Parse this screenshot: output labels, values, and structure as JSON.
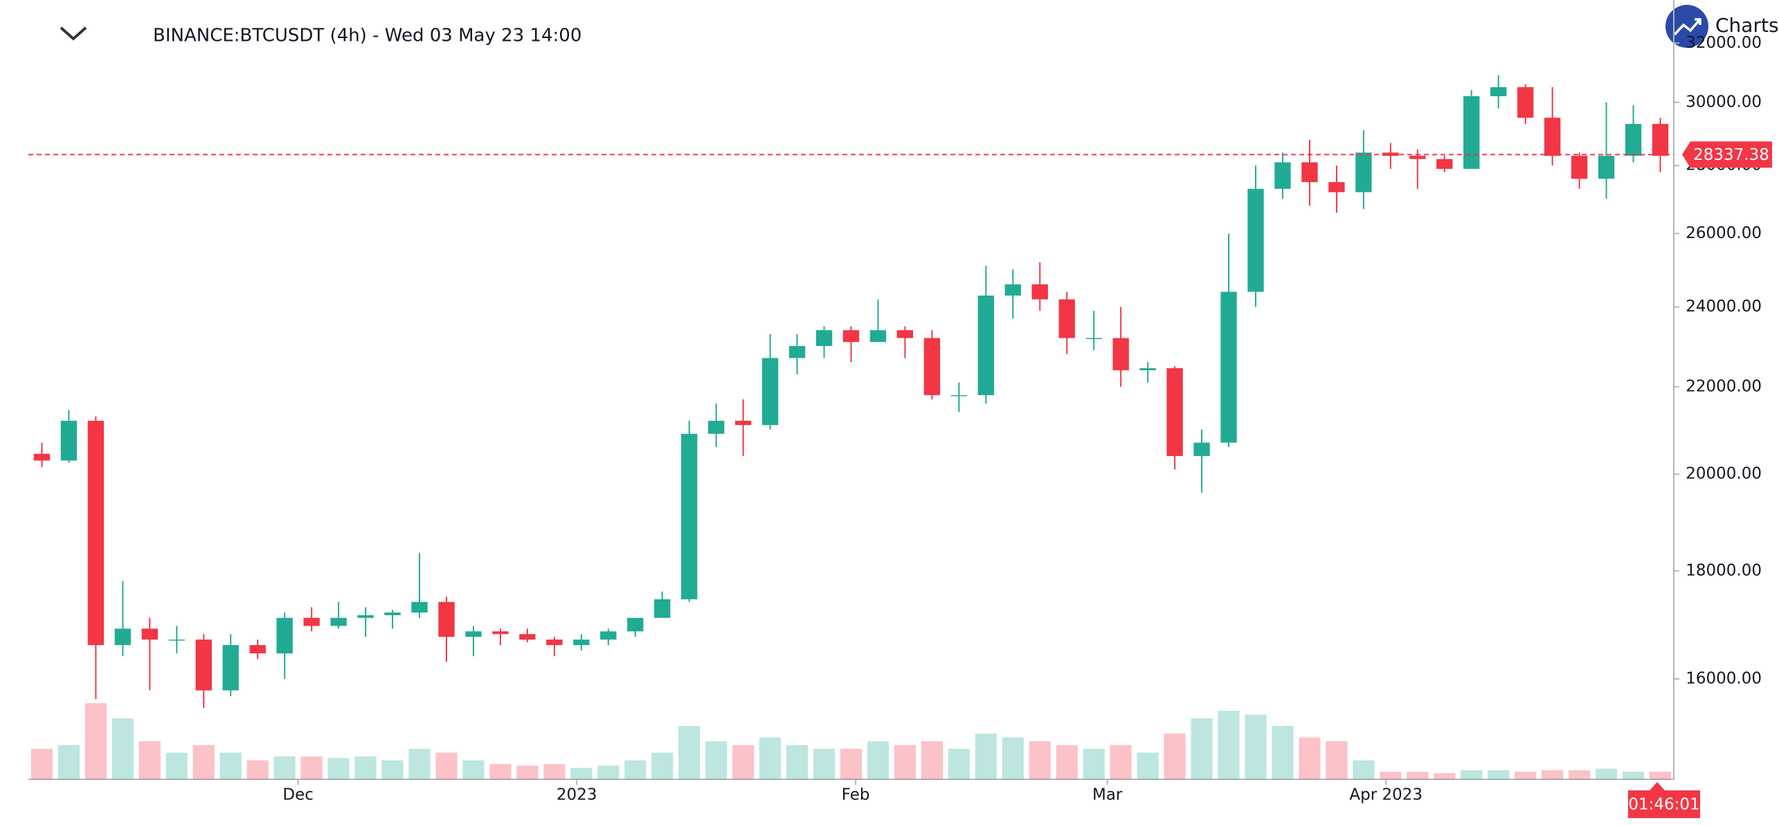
{
  "chart_data": {
    "type": "candlestick",
    "title": "BINANCE:BTCUSDT (4h) - Wed 03 May 23 14:00",
    "brand": "Charts p",
    "log_scale": true,
    "ylim": [
      14340,
      33540
    ],
    "yticks": [
      {
        "value": 16000,
        "label": "16000.00"
      },
      {
        "value": 18000,
        "label": "18000.00"
      },
      {
        "value": 20000,
        "label": "20000.00"
      },
      {
        "value": 22000,
        "label": "22000.00"
      },
      {
        "value": 24000,
        "label": "24000.00"
      },
      {
        "value": 26000,
        "label": "26000.00"
      },
      {
        "value": 28000,
        "label": "28000.00"
      },
      {
        "value": 30000,
        "label": "30000.00"
      },
      {
        "value": 32000,
        "label": "32000.00"
      }
    ],
    "xlim": [
      0,
      61
    ],
    "xticks": [
      {
        "value": 10,
        "label": "Dec"
      },
      {
        "value": 20.33,
        "label": "2023"
      },
      {
        "value": 30.67,
        "label": "Feb"
      },
      {
        "value": 40,
        "label": "Mar"
      },
      {
        "value": 50.33,
        "label": "Apr 2023"
      }
    ],
    "up_color": "#22ab94",
    "down_color": "#f23645",
    "last_price": 28337.38,
    "countdown": "01:46:01",
    "ohlc": [
      [
        20450,
        20700,
        20150,
        20300
      ],
      [
        20300,
        21450,
        20250,
        21200
      ],
      [
        21200,
        21300,
        15650,
        16600
      ],
      [
        16600,
        17800,
        16400,
        16900
      ],
      [
        16900,
        17100,
        15800,
        16700
      ],
      [
        16700,
        16950,
        16450,
        16700
      ],
      [
        16700,
        16800,
        15500,
        15800
      ],
      [
        15800,
        16800,
        15700,
        16600
      ],
      [
        16600,
        16700,
        16350,
        16450
      ],
      [
        16450,
        17200,
        16000,
        17100
      ],
      [
        17100,
        17300,
        16850,
        16950
      ],
      [
        16950,
        17400,
        16900,
        17100
      ],
      [
        17100,
        17300,
        16750,
        17150
      ],
      [
        17150,
        17250,
        16900,
        17200
      ],
      [
        17200,
        18350,
        17100,
        17400
      ],
      [
        17400,
        17500,
        16300,
        16750
      ],
      [
        16750,
        16950,
        16400,
        16850
      ],
      [
        16850,
        16900,
        16600,
        16800
      ],
      [
        16800,
        16900,
        16650,
        16700
      ],
      [
        16700,
        16750,
        16400,
        16600
      ],
      [
        16600,
        16800,
        16500,
        16700
      ],
      [
        16700,
        16900,
        16600,
        16850
      ],
      [
        16850,
        17100,
        16750,
        17100
      ],
      [
        17100,
        17600,
        17100,
        17450
      ],
      [
        17450,
        21200,
        17400,
        20900
      ],
      [
        20900,
        21600,
        20600,
        21200
      ],
      [
        21200,
        21700,
        20400,
        21100
      ],
      [
        21100,
        23300,
        21000,
        22700
      ],
      [
        22700,
        23300,
        22300,
        23000
      ],
      [
        23000,
        23500,
        22700,
        23400
      ],
      [
        23400,
        23500,
        22600,
        23100
      ],
      [
        23100,
        24200,
        23100,
        23400
      ],
      [
        23400,
        23500,
        22700,
        23200
      ],
      [
        23200,
        23400,
        21700,
        21800
      ],
      [
        21800,
        22100,
        21400,
        21800
      ],
      [
        21800,
        25100,
        21600,
        24300
      ],
      [
        24300,
        25000,
        23700,
        24600
      ],
      [
        24600,
        25200,
        23900,
        24200
      ],
      [
        24200,
        24400,
        22800,
        23200
      ],
      [
        23200,
        23900,
        22900,
        23200
      ],
      [
        23200,
        24000,
        22000,
        22400
      ],
      [
        22400,
        22600,
        22100,
        22450
      ],
      [
        22450,
        22500,
        20100,
        20400
      ],
      [
        20400,
        21000,
        19600,
        20700
      ],
      [
        20700,
        26000,
        20600,
        24400
      ],
      [
        24400,
        28000,
        24000,
        27300
      ],
      [
        27300,
        28400,
        27000,
        28100
      ],
      [
        28100,
        28800,
        26800,
        27500
      ],
      [
        27500,
        28000,
        26600,
        27200
      ],
      [
        27200,
        29100,
        26700,
        28400
      ],
      [
        28400,
        28700,
        27900,
        28300
      ],
      [
        28300,
        28500,
        27300,
        28200
      ],
      [
        28200,
        28300,
        27800,
        27900
      ],
      [
        27900,
        30400,
        27900,
        30200
      ],
      [
        30200,
        30900,
        29800,
        30500
      ],
      [
        30500,
        30600,
        29300,
        29500
      ],
      [
        29500,
        30500,
        28000,
        28300
      ],
      [
        28300,
        28400,
        27300,
        27600
      ],
      [
        27600,
        30000,
        27000,
        28300
      ],
      [
        28300,
        29900,
        28100,
        29300
      ],
      [
        29300,
        29500,
        27800,
        28300
      ]
    ],
    "volume": [
      40,
      45,
      100,
      80,
      50,
      35,
      45,
      35,
      25,
      30,
      30,
      28,
      30,
      25,
      40,
      35,
      25,
      20,
      18,
      20,
      15,
      18,
      25,
      35,
      70,
      50,
      45,
      55,
      45,
      40,
      40,
      50,
      45,
      50,
      40,
      60,
      55,
      50,
      45,
      40,
      45,
      35,
      60,
      80,
      90,
      85,
      70,
      55,
      50,
      25,
      10,
      10,
      8,
      12,
      12,
      10,
      12,
      12,
      14,
      10,
      10
    ]
  }
}
